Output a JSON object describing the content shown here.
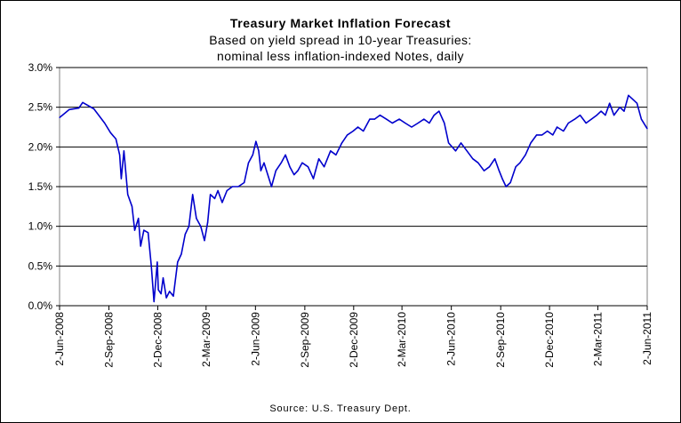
{
  "chart_data": {
    "type": "line",
    "title": "Treasury Market Inflation Forecast",
    "subtitle": [
      "Based on yield spread in 10-year Treasuries:",
      "nominal less inflation-indexed Notes, daily"
    ],
    "source": "Source: U.S. Treasury Dept.",
    "xlabel": "",
    "ylabel": "",
    "x_range": [
      "2-Jun-2008",
      "2-Jun-2011"
    ],
    "ylim": [
      0.0,
      3.0
    ],
    "y_ticks": [
      "0.0%",
      "0.5%",
      "1.0%",
      "1.5%",
      "2.0%",
      "2.5%",
      "3.0%"
    ],
    "y_tick_values": [
      0.0,
      0.5,
      1.0,
      1.5,
      2.0,
      2.5,
      3.0
    ],
    "x_ticks": [
      "2-Jun-2008",
      "2-Sep-2008",
      "2-Dec-2008",
      "2-Mar-2009",
      "2-Jun-2009",
      "2-Sep-2009",
      "2-Dec-2009",
      "2-Mar-2010",
      "2-Jun-2010",
      "2-Sep-2010",
      "2-Dec-2010",
      "2-Mar-2011",
      "2-Jun-2011"
    ],
    "grid": "horizontal",
    "legend": "none",
    "line_color": "#0000cc",
    "series": [
      {
        "x": [
          "2008-06-02",
          "2008-06-20",
          "2008-07-08",
          "2008-07-15",
          "2008-08-05",
          "2008-08-25",
          "2008-09-05",
          "2008-09-15",
          "2008-09-22",
          "2008-09-25",
          "2008-09-30",
          "2008-10-07",
          "2008-10-15",
          "2008-10-20",
          "2008-10-27",
          "2008-10-31",
          "2008-11-06",
          "2008-11-14",
          "2008-11-20",
          "2008-11-25",
          "2008-11-28",
          "2008-12-01",
          "2008-12-03",
          "2008-12-08",
          "2008-12-12",
          "2008-12-18",
          "2008-12-24",
          "2008-12-31",
          "2009-01-08",
          "2009-01-15",
          "2009-01-22",
          "2009-01-29",
          "2009-02-05",
          "2009-02-12",
          "2009-02-20",
          "2009-02-27",
          "2009-03-05",
          "2009-03-10",
          "2009-03-18",
          "2009-03-24",
          "2009-04-01",
          "2009-04-10",
          "2009-04-20",
          "2009-05-01",
          "2009-05-12",
          "2009-05-20",
          "2009-05-28",
          "2009-06-03",
          "2009-06-08",
          "2009-06-12",
          "2009-06-18",
          "2009-06-25",
          "2009-07-02",
          "2009-07-10",
          "2009-07-20",
          "2009-07-28",
          "2009-08-05",
          "2009-08-13",
          "2009-08-20",
          "2009-08-28",
          "2009-09-08",
          "2009-09-18",
          "2009-09-28",
          "2009-10-08",
          "2009-10-20",
          "2009-10-30",
          "2009-11-10",
          "2009-11-20",
          "2009-12-01",
          "2009-12-10",
          "2009-12-20",
          "2010-01-01",
          "2010-01-10",
          "2010-01-20",
          "2010-02-01",
          "2010-02-12",
          "2010-02-25",
          "2010-03-08",
          "2010-03-20",
          "2010-04-01",
          "2010-04-12",
          "2010-04-22",
          "2010-05-01",
          "2010-05-10",
          "2010-05-20",
          "2010-05-28",
          "2010-06-10",
          "2010-06-20",
          "2010-07-01",
          "2010-07-12",
          "2010-07-22",
          "2010-08-02",
          "2010-08-12",
          "2010-08-22",
          "2010-08-30",
          "2010-09-05",
          "2010-09-12",
          "2010-09-20",
          "2010-09-30",
          "2010-10-08",
          "2010-10-18",
          "2010-10-28",
          "2010-11-08",
          "2010-11-18",
          "2010-11-28",
          "2010-12-08",
          "2010-12-16",
          "2010-12-28",
          "2011-01-06",
          "2011-01-18",
          "2011-01-28",
          "2011-02-08",
          "2011-02-18",
          "2011-02-28",
          "2011-03-08",
          "2011-03-16",
          "2011-03-24",
          "2011-04-01",
          "2011-04-12",
          "2011-04-20",
          "2011-04-28",
          "2011-05-06",
          "2011-05-14",
          "2011-05-22",
          "2011-06-02"
        ],
        "values": [
          2.37,
          2.47,
          2.49,
          2.56,
          2.48,
          2.3,
          2.18,
          2.1,
          1.9,
          1.6,
          1.95,
          1.4,
          1.25,
          0.95,
          1.1,
          0.75,
          0.95,
          0.92,
          0.5,
          0.05,
          0.3,
          0.55,
          0.2,
          0.15,
          0.35,
          0.1,
          0.18,
          0.12,
          0.55,
          0.65,
          0.9,
          1.0,
          1.4,
          1.1,
          1.0,
          0.82,
          1.05,
          1.4,
          1.35,
          1.45,
          1.3,
          1.45,
          1.5,
          1.5,
          1.55,
          1.8,
          1.9,
          2.07,
          1.95,
          1.7,
          1.8,
          1.65,
          1.5,
          1.7,
          1.8,
          1.9,
          1.75,
          1.65,
          1.7,
          1.8,
          1.75,
          1.6,
          1.85,
          1.75,
          1.95,
          1.9,
          2.05,
          2.15,
          2.2,
          2.25,
          2.2,
          2.35,
          2.35,
          2.4,
          2.35,
          2.3,
          2.35,
          2.3,
          2.25,
          2.3,
          2.35,
          2.3,
          2.4,
          2.45,
          2.3,
          2.05,
          1.95,
          2.05,
          1.95,
          1.85,
          1.8,
          1.7,
          1.75,
          1.85,
          1.7,
          1.6,
          1.5,
          1.55,
          1.75,
          1.8,
          1.9,
          2.05,
          2.15,
          2.15,
          2.2,
          2.15,
          2.25,
          2.2,
          2.3,
          2.35,
          2.4,
          2.3,
          2.35,
          2.4,
          2.45,
          2.4,
          2.55,
          2.4,
          2.5,
          2.45,
          2.65,
          2.6,
          2.55,
          2.35,
          2.23
        ]
      }
    ]
  }
}
